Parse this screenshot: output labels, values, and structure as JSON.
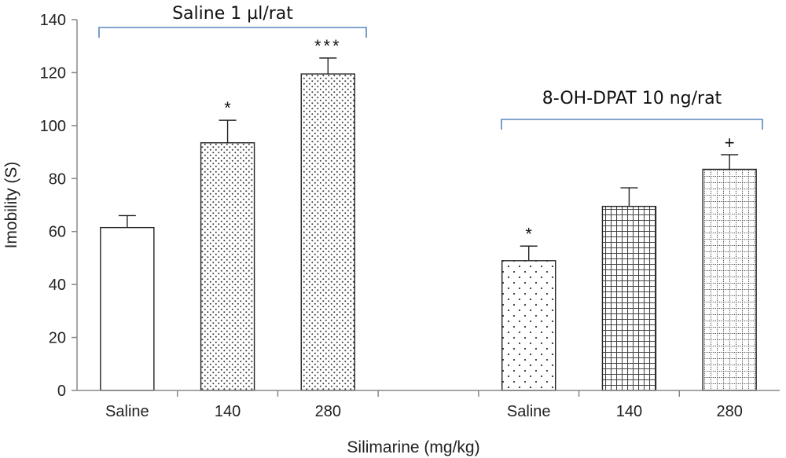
{
  "chart_data": {
    "type": "bar",
    "ylabel": "Imobility (S)",
    "xlabel": "Silimarine (mg/kg)",
    "ylim": [
      0,
      140
    ],
    "yticks": [
      "0",
      "20",
      "40",
      "60",
      "80",
      "100",
      "120",
      "140"
    ],
    "categories": [
      "Saline",
      "140",
      "280",
      "",
      "Saline",
      "140",
      "280"
    ],
    "groups": [
      {
        "label": "Saline 1 µl/rat",
        "category_range": [
          0,
          2
        ]
      },
      {
        "label": "8-OH-DPAT 10 ng/rat",
        "category_range": [
          4,
          6
        ]
      }
    ],
    "bars": [
      {
        "category": "Saline",
        "value": 61.5,
        "error": 4.5,
        "pattern": "none",
        "significance": ""
      },
      {
        "category": "140",
        "value": 93.5,
        "error": 8.5,
        "pattern": "fine-dots",
        "significance": "*"
      },
      {
        "category": "280",
        "value": 119.5,
        "error": 6.0,
        "pattern": "fine-dots",
        "significance": "***"
      },
      {
        "category": "Saline",
        "value": 49.0,
        "error": 5.5,
        "pattern": "sparse-dots",
        "significance": "*"
      },
      {
        "category": "140",
        "value": 69.5,
        "error": 7.0,
        "pattern": "grid",
        "significance": ""
      },
      {
        "category": "280",
        "value": 83.5,
        "error": 5.5,
        "pattern": "dotted-grid",
        "significance": "+"
      }
    ],
    "colors": {
      "bracket": "#5b86c0",
      "axis": "#888888",
      "bar_stroke": "#222222"
    }
  }
}
